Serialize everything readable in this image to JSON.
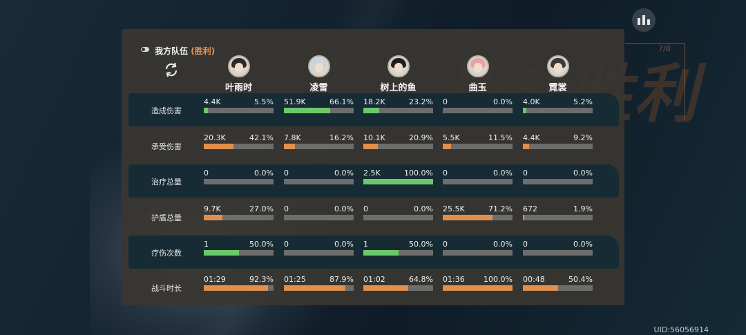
{
  "background": {
    "victory_text": "战斗胜利",
    "deco_number": "7/8"
  },
  "header": {
    "team_label": "我方队伍",
    "result": "(胜利)"
  },
  "icons": {
    "stats": "bar-chart-icon",
    "toggle": "toggle-icon",
    "refresh": "refresh-icon"
  },
  "colors": {
    "green": "#6cc96a",
    "orange": "#e08f4c",
    "bar_bg": "#6d6d6d",
    "result": "#e0935a"
  },
  "players": [
    {
      "name": "叶雨时",
      "hair": "#2b2b2b"
    },
    {
      "name": "凌雪",
      "hair": "#c8d4de"
    },
    {
      "name": "树上的鱼",
      "hair": "#1f1f1f"
    },
    {
      "name": "曲玉",
      "hair": "#e6a3a8"
    },
    {
      "name": "霓裳",
      "hair": "#3a3a3a"
    }
  ],
  "rows": [
    {
      "label": "造成伤害",
      "color": "green",
      "dark": true,
      "cells": [
        {
          "value": "4.4K",
          "pct": "5.5%",
          "fill": 0.055
        },
        {
          "value": "51.9K",
          "pct": "66.1%",
          "fill": 0.661
        },
        {
          "value": "18.2K",
          "pct": "23.2%",
          "fill": 0.232
        },
        {
          "value": "0",
          "pct": "0.0%",
          "fill": 0.0
        },
        {
          "value": "4.0K",
          "pct": "5.2%",
          "fill": 0.052
        }
      ]
    },
    {
      "label": "承受伤害",
      "color": "orange",
      "dark": false,
      "cells": [
        {
          "value": "20.3K",
          "pct": "42.1%",
          "fill": 0.421
        },
        {
          "value": "7.8K",
          "pct": "16.2%",
          "fill": 0.162
        },
        {
          "value": "10.1K",
          "pct": "20.9%",
          "fill": 0.209
        },
        {
          "value": "5.5K",
          "pct": "11.5%",
          "fill": 0.115
        },
        {
          "value": "4.4K",
          "pct": "9.2%",
          "fill": 0.092
        }
      ]
    },
    {
      "label": "治疗总量",
      "color": "green",
      "dark": true,
      "cells": [
        {
          "value": "0",
          "pct": "0.0%",
          "fill": 0.0
        },
        {
          "value": "0",
          "pct": "0.0%",
          "fill": 0.0
        },
        {
          "value": "2.5K",
          "pct": "100.0%",
          "fill": 1.0
        },
        {
          "value": "0",
          "pct": "0.0%",
          "fill": 0.0
        },
        {
          "value": "0",
          "pct": "0.0%",
          "fill": 0.0
        }
      ]
    },
    {
      "label": "护盾总量",
      "color": "orange",
      "dark": false,
      "cells": [
        {
          "value": "9.7K",
          "pct": "27.0%",
          "fill": 0.27
        },
        {
          "value": "0",
          "pct": "0.0%",
          "fill": 0.0
        },
        {
          "value": "0",
          "pct": "0.0%",
          "fill": 0.0
        },
        {
          "value": "25.5K",
          "pct": "71.2%",
          "fill": 0.712
        },
        {
          "value": "672",
          "pct": "1.9%",
          "fill": 0.019
        }
      ]
    },
    {
      "label": "疗伤次数",
      "color": "green",
      "dark": true,
      "cells": [
        {
          "value": "1",
          "pct": "50.0%",
          "fill": 0.5
        },
        {
          "value": "0",
          "pct": "0.0%",
          "fill": 0.0
        },
        {
          "value": "1",
          "pct": "50.0%",
          "fill": 0.5
        },
        {
          "value": "0",
          "pct": "0.0%",
          "fill": 0.0
        },
        {
          "value": "0",
          "pct": "0.0%",
          "fill": 0.0
        }
      ]
    },
    {
      "label": "战斗时长",
      "color": "orange",
      "dark": false,
      "cells": [
        {
          "value": "01:29",
          "pct": "92.3%",
          "fill": 0.923
        },
        {
          "value": "01:25",
          "pct": "87.9%",
          "fill": 0.879
        },
        {
          "value": "01:02",
          "pct": "64.8%",
          "fill": 0.648
        },
        {
          "value": "01:36",
          "pct": "100.0%",
          "fill": 1.0
        },
        {
          "value": "00:48",
          "pct": "50.4%",
          "fill": 0.504
        }
      ]
    }
  ],
  "footer": {
    "uid": "UID:56056914"
  }
}
